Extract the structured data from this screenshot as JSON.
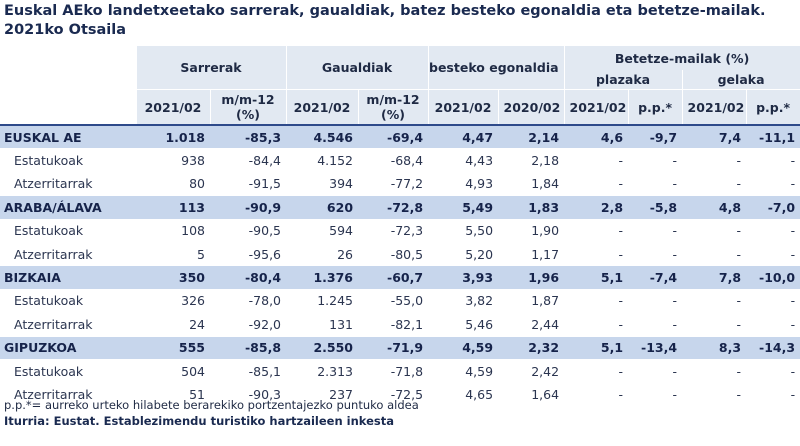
{
  "title": "Euskal AEko landetxeetako sarrerak, gaualdiak, batez besteko egonaldia eta betetze-mailak. 2021ko Otsaila",
  "headers": {
    "sarrerak": "Sarrerak",
    "gaualdiak": "Gaualdiak",
    "egonaldia": "Batez besteko egonaldia",
    "betetze": "Betetze-mailak (%)",
    "plazaka": "plazaka",
    "gelaka": "gelaka",
    "c_2021": "2021/02",
    "c_2020": "2020/02",
    "c_mm12": "m/m-12 (%)",
    "c_pp": "p.p.*"
  },
  "rows": [
    {
      "type": "region",
      "label": "EUSKAL AE",
      "sar": "1.018",
      "sar_v": "-85,3",
      "gau": "4.546",
      "gau_v": "-69,4",
      "eg21": "4,47",
      "eg20": "2,14",
      "pl": "4,6",
      "pl_pp": "-9,7",
      "ge": "7,4",
      "ge_pp": "-11,1"
    },
    {
      "type": "sub",
      "label": "Estatukoak",
      "sar": "938",
      "sar_v": "-84,4",
      "gau": "4.152",
      "gau_v": "-68,4",
      "eg21": "4,43",
      "eg20": "2,18",
      "pl": "-",
      "pl_pp": "-",
      "ge": "-",
      "ge_pp": "-"
    },
    {
      "type": "sub",
      "label": "Atzerritarrak",
      "sar": "80",
      "sar_v": "-91,5",
      "gau": "394",
      "gau_v": "-77,2",
      "eg21": "4,93",
      "eg20": "1,84",
      "pl": "-",
      "pl_pp": "-",
      "ge": "-",
      "ge_pp": "-"
    },
    {
      "type": "region",
      "label": "ARABA/ÁLAVA",
      "sar": "113",
      "sar_v": "-90,9",
      "gau": "620",
      "gau_v": "-72,8",
      "eg21": "5,49",
      "eg20": "1,83",
      "pl": "2,8",
      "pl_pp": "-5,8",
      "ge": "4,8",
      "ge_pp": "-7,0"
    },
    {
      "type": "sub",
      "label": "Estatukoak",
      "sar": "108",
      "sar_v": "-90,5",
      "gau": "594",
      "gau_v": "-72,3",
      "eg21": "5,50",
      "eg20": "1,90",
      "pl": "-",
      "pl_pp": "-",
      "ge": "-",
      "ge_pp": "-"
    },
    {
      "type": "sub",
      "label": "Atzerritarrak",
      "sar": "5",
      "sar_v": "-95,6",
      "gau": "26",
      "gau_v": "-80,5",
      "eg21": "5,20",
      "eg20": "1,17",
      "pl": "-",
      "pl_pp": "-",
      "ge": "-",
      "ge_pp": "-"
    },
    {
      "type": "region",
      "label": "BIZKAIA",
      "sar": "350",
      "sar_v": "-80,4",
      "gau": "1.376",
      "gau_v": "-60,7",
      "eg21": "3,93",
      "eg20": "1,96",
      "pl": "5,1",
      "pl_pp": "-7,4",
      "ge": "7,8",
      "ge_pp": "-10,0"
    },
    {
      "type": "sub",
      "label": "Estatukoak",
      "sar": "326",
      "sar_v": "-78,0",
      "gau": "1.245",
      "gau_v": "-55,0",
      "eg21": "3,82",
      "eg20": "1,87",
      "pl": "-",
      "pl_pp": "-",
      "ge": "-",
      "ge_pp": "-"
    },
    {
      "type": "sub",
      "label": "Atzerritarrak",
      "sar": "24",
      "sar_v": "-92,0",
      "gau": "131",
      "gau_v": "-82,1",
      "eg21": "5,46",
      "eg20": "2,44",
      "pl": "-",
      "pl_pp": "-",
      "ge": "-",
      "ge_pp": "-"
    },
    {
      "type": "region",
      "label": "GIPUZKOA",
      "sar": "555",
      "sar_v": "-85,8",
      "gau": "2.550",
      "gau_v": "-71,9",
      "eg21": "4,59",
      "eg20": "2,32",
      "pl": "5,1",
      "pl_pp": "-13,4",
      "ge": "8,3",
      "ge_pp": "-14,3"
    },
    {
      "type": "sub",
      "label": "Estatukoak",
      "sar": "504",
      "sar_v": "-85,1",
      "gau": "2.313",
      "gau_v": "-71,8",
      "eg21": "4,59",
      "eg20": "2,42",
      "pl": "-",
      "pl_pp": "-",
      "ge": "-",
      "ge_pp": "-"
    },
    {
      "type": "sub",
      "label": "Atzerritarrak",
      "sar": "51",
      "sar_v": "-90,3",
      "gau": "237",
      "gau_v": "-72,5",
      "eg21": "4,65",
      "eg20": "1,64",
      "pl": "-",
      "pl_pp": "-",
      "ge": "-",
      "ge_pp": "-"
    }
  ],
  "footnote": "p.p.*= aurreko urteko hilabete berarekiko portzentajezko puntuko aldea",
  "source": "Iturria: Eustat. Establezimendu turistiko hartzaileen inkesta"
}
